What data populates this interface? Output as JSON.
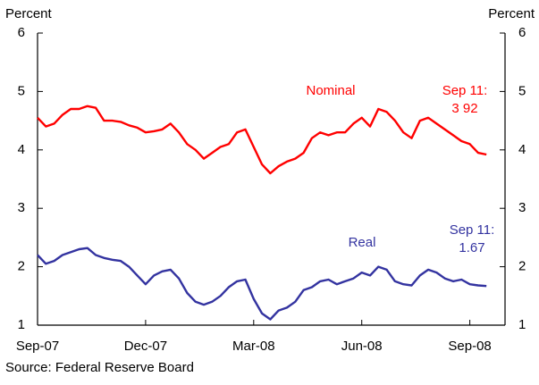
{
  "chart_data": {
    "type": "line",
    "y_label": "Percent",
    "y2_label": "Percent",
    "source": "Source: Federal Reserve Board",
    "categories": [
      "Sep-07",
      null,
      null,
      null,
      null,
      null,
      null,
      null,
      null,
      null,
      null,
      null,
      null,
      "Dec-07",
      null,
      null,
      null,
      null,
      null,
      null,
      null,
      null,
      null,
      null,
      null,
      null,
      "Mar-08",
      null,
      null,
      null,
      null,
      null,
      null,
      null,
      null,
      null,
      null,
      null,
      null,
      "Jun-08",
      null,
      null,
      null,
      null,
      null,
      null,
      null,
      null,
      null,
      null,
      null,
      null,
      "Sep-08",
      null,
      null
    ],
    "series": [
      {
        "name": "Nominal",
        "color": "#ff0000",
        "values": [
          4.55,
          4.4,
          4.45,
          4.6,
          4.7,
          4.7,
          4.75,
          4.72,
          4.5,
          4.5,
          4.48,
          4.42,
          4.38,
          4.3,
          4.32,
          4.35,
          4.45,
          4.3,
          4.1,
          4.0,
          3.85,
          3.95,
          4.05,
          4.1,
          4.3,
          4.35,
          4.05,
          3.75,
          3.6,
          3.72,
          3.8,
          3.85,
          3.95,
          4.2,
          4.3,
          4.25,
          4.3,
          4.3,
          4.45,
          4.55,
          4.4,
          4.7,
          4.65,
          4.5,
          4.3,
          4.2,
          4.5,
          4.55,
          4.45,
          4.35,
          4.25,
          4.15,
          4.1,
          3.95,
          3.92
        ],
        "annotation": [
          "Sep 11:",
          "3 92"
        ]
      },
      {
        "name": "Real",
        "color": "#3333a0",
        "values": [
          2.2,
          2.05,
          2.1,
          2.2,
          2.25,
          2.3,
          2.32,
          2.2,
          2.15,
          2.12,
          2.1,
          2.0,
          1.85,
          1.7,
          1.85,
          1.92,
          1.95,
          1.8,
          1.55,
          1.4,
          1.35,
          1.4,
          1.5,
          1.65,
          1.75,
          1.78,
          1.45,
          1.2,
          1.1,
          1.25,
          1.3,
          1.4,
          1.6,
          1.65,
          1.75,
          1.78,
          1.7,
          1.75,
          1.8,
          1.9,
          1.85,
          2.0,
          1.95,
          1.75,
          1.7,
          1.68,
          1.85,
          1.95,
          1.9,
          1.8,
          1.75,
          1.78,
          1.7,
          1.68,
          1.67
        ],
        "annotation": [
          "Sep 11:",
          "1.67"
        ]
      }
    ],
    "ylim": [
      1,
      6
    ],
    "yticks": [
      1,
      2,
      3,
      4,
      5,
      6
    ],
    "y2lim": [
      1,
      6
    ],
    "y2ticks": [
      1,
      2,
      3,
      4,
      5,
      6
    ],
    "grid": false
  }
}
